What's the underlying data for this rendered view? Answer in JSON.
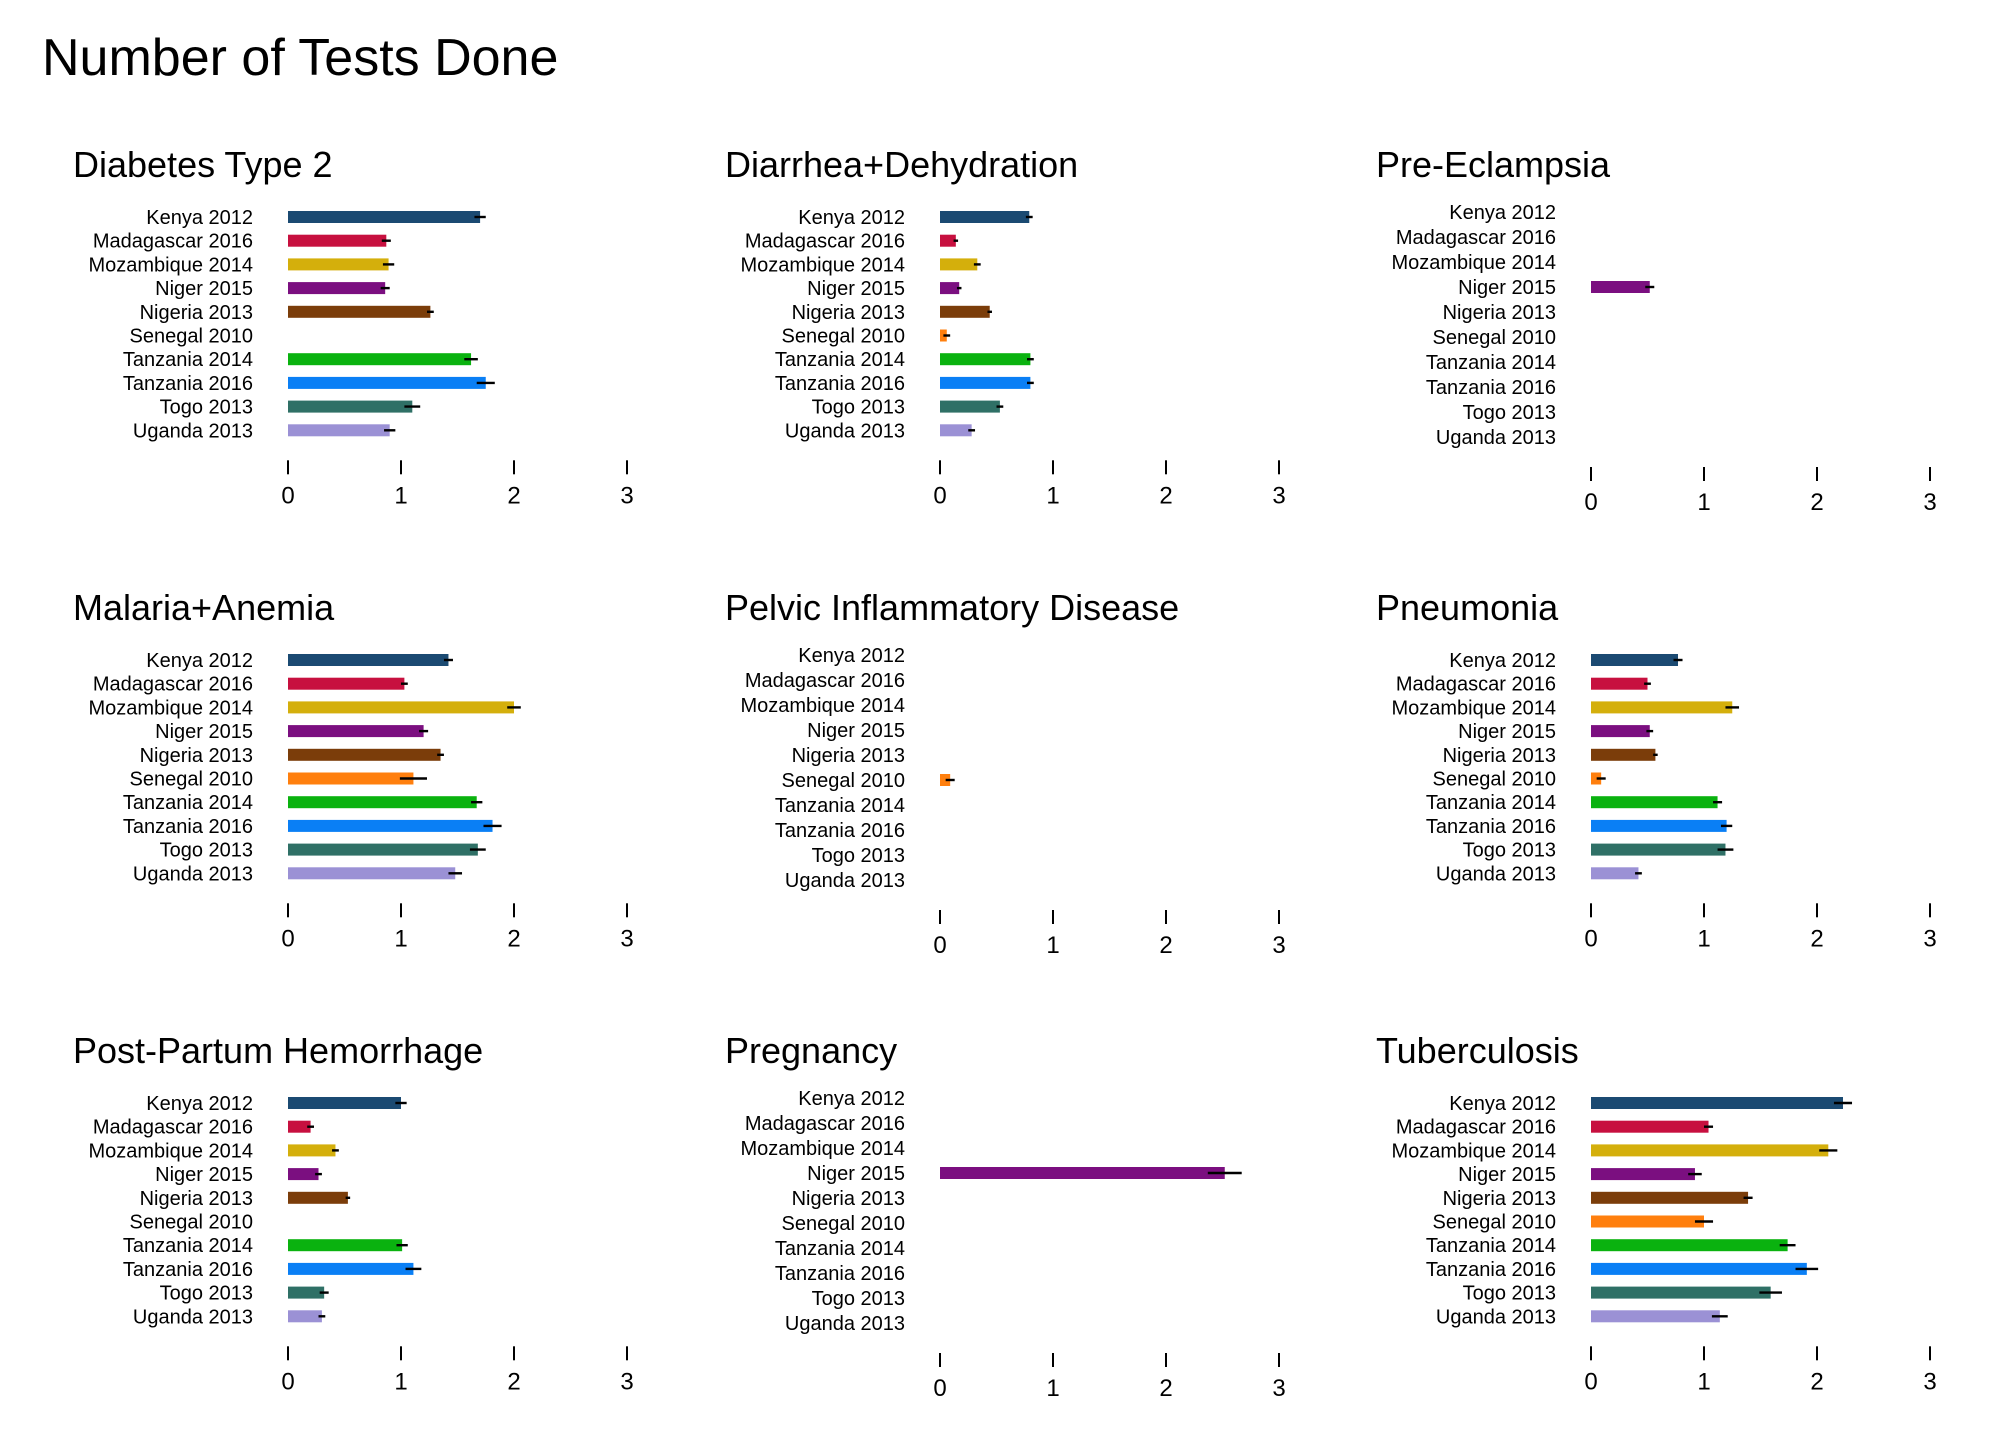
{
  "title": "Number of Tests Done",
  "chart_data": {
    "type": "bar",
    "orientation": "horizontal",
    "title": "Number of Tests Done",
    "categories": [
      "Kenya 2012",
      "Madagascar 2016",
      "Mozambique 2014",
      "Niger 2015",
      "Nigeria 2013",
      "Senegal 2010",
      "Tanzania 2014",
      "Tanzania 2016",
      "Togo 2013",
      "Uganda 2013"
    ],
    "colors": [
      "#1b4a72",
      "#c7103f",
      "#d4af0c",
      "#7b0f80",
      "#7b3d0a",
      "#ff7f0e",
      "#0ab20f",
      "#0a7ff5",
      "#2f7066",
      "#9b91d5"
    ],
    "xlim": [
      0,
      3
    ],
    "xticks": [
      0,
      1,
      2,
      3
    ],
    "grid": false,
    "panels": [
      {
        "title": "Diabetes Type 2",
        "values": [
          1.7,
          0.87,
          0.89,
          0.86,
          1.26,
          null,
          1.62,
          1.75,
          1.1,
          0.9
        ],
        "errors": [
          0.05,
          0.04,
          0.05,
          0.04,
          0.03,
          null,
          0.06,
          0.08,
          0.07,
          0.05
        ]
      },
      {
        "title": "Diarrhea+Dehydration",
        "values": [
          0.79,
          0.14,
          0.33,
          0.17,
          0.44,
          0.06,
          0.8,
          0.8,
          0.53,
          0.28
        ],
        "errors": [
          0.03,
          0.02,
          0.03,
          0.02,
          0.02,
          0.03,
          0.03,
          0.03,
          0.03,
          0.03
        ]
      },
      {
        "title": "Pre-Eclampsia",
        "values": [
          null,
          null,
          null,
          0.52,
          null,
          null,
          null,
          null,
          null,
          null
        ],
        "errors": [
          null,
          null,
          null,
          0.04,
          null,
          null,
          null,
          null,
          null,
          null
        ]
      },
      {
        "title": "Malaria+Anemia",
        "values": [
          1.42,
          1.03,
          2.0,
          1.2,
          1.35,
          1.11,
          1.67,
          1.81,
          1.68,
          1.48
        ],
        "errors": [
          0.04,
          0.03,
          0.06,
          0.04,
          0.03,
          0.12,
          0.05,
          0.08,
          0.07,
          0.06
        ]
      },
      {
        "title": "Pelvic Inflammatory Disease",
        "values": [
          null,
          null,
          null,
          null,
          null,
          0.09,
          null,
          null,
          null,
          null
        ],
        "errors": [
          null,
          null,
          null,
          null,
          null,
          0.04,
          null,
          null,
          null,
          null
        ]
      },
      {
        "title": "Pneumonia",
        "values": [
          0.77,
          0.5,
          1.25,
          0.52,
          0.57,
          0.09,
          1.12,
          1.2,
          1.19,
          0.42
        ],
        "errors": [
          0.04,
          0.03,
          0.06,
          0.03,
          0.02,
          0.04,
          0.04,
          0.05,
          0.07,
          0.03
        ]
      },
      {
        "title": "Post-Partum Hemorrhage",
        "values": [
          1.0,
          0.2,
          0.42,
          0.27,
          0.53,
          null,
          1.01,
          1.11,
          0.32,
          0.3
        ],
        "errors": [
          0.05,
          0.03,
          0.03,
          0.03,
          0.02,
          null,
          0.05,
          0.07,
          0.04,
          0.03
        ]
      },
      {
        "title": "Pregnancy",
        "values": [
          null,
          null,
          null,
          2.52,
          null,
          null,
          null,
          null,
          null,
          null
        ],
        "errors": [
          null,
          null,
          null,
          0.15,
          null,
          null,
          null,
          null,
          null,
          null
        ]
      },
      {
        "title": "Tuberculosis",
        "values": [
          2.23,
          1.04,
          2.1,
          0.92,
          1.39,
          1.0,
          1.74,
          1.91,
          1.59,
          1.14
        ],
        "errors": [
          0.08,
          0.04,
          0.08,
          0.06,
          0.04,
          0.08,
          0.07,
          0.1,
          0.1,
          0.07
        ]
      }
    ]
  }
}
